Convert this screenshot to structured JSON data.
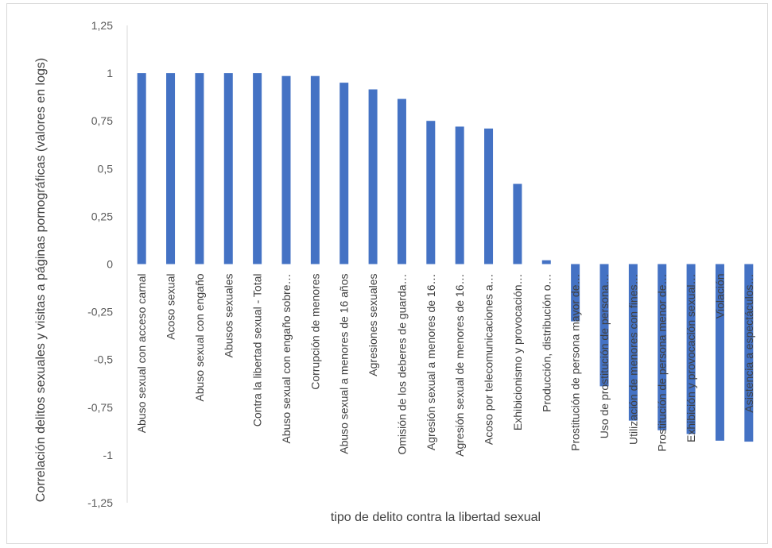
{
  "chart_data": {
    "type": "bar",
    "title": "",
    "xlabel": "tipo de delito contra la libertad sexual",
    "ylabel": "Correlación delitos sexuales y  visitas a páginas pornográficas (valores en logs)",
    "ylim": [
      -1.25,
      1.25
    ],
    "yticks": [
      "1,25",
      "1",
      "0,75",
      "0,5",
      "0,25",
      "0",
      "-0,25",
      "-0,5",
      "-0,75",
      "-1",
      "-1,25"
    ],
    "grid": false,
    "bar_color": "#4472c4",
    "categories": [
      "Abuso sexual con acceso carnal",
      "Acoso sexual",
      "Abuso sexual con engaño",
      "Abusos sexuales",
      "Contra la libertad sexual - Total",
      "Abuso sexual con engaño sobre…",
      "Corrupción de menores",
      "Abuso sexual a menores de 16 años",
      "Agresiones sexuales",
      "Omisión de los deberes de guarda…",
      "Agresión sexual a menores de 16…",
      "Agresión sexual de menores de 16…",
      "Acoso por telecomunicaciones a…",
      "Exhibicionismo y provocación…",
      "Producción, distribución o…",
      "Prostitución de persona mayor de…",
      "Uso de prostitución de persona…",
      "Utilización de menores con fines…",
      "Prostitución de persona menor de…",
      "Exhibición y provocación sexual…",
      "Violación",
      "Asistencia a espectáculos…"
    ],
    "values": [
      1.0,
      1.0,
      1.0,
      1.0,
      1.0,
      0.985,
      0.985,
      0.95,
      0.915,
      0.865,
      0.75,
      0.72,
      0.71,
      0.42,
      0.02,
      -0.3,
      -0.64,
      -0.82,
      -0.87,
      -0.89,
      -0.925,
      -0.93
    ]
  }
}
